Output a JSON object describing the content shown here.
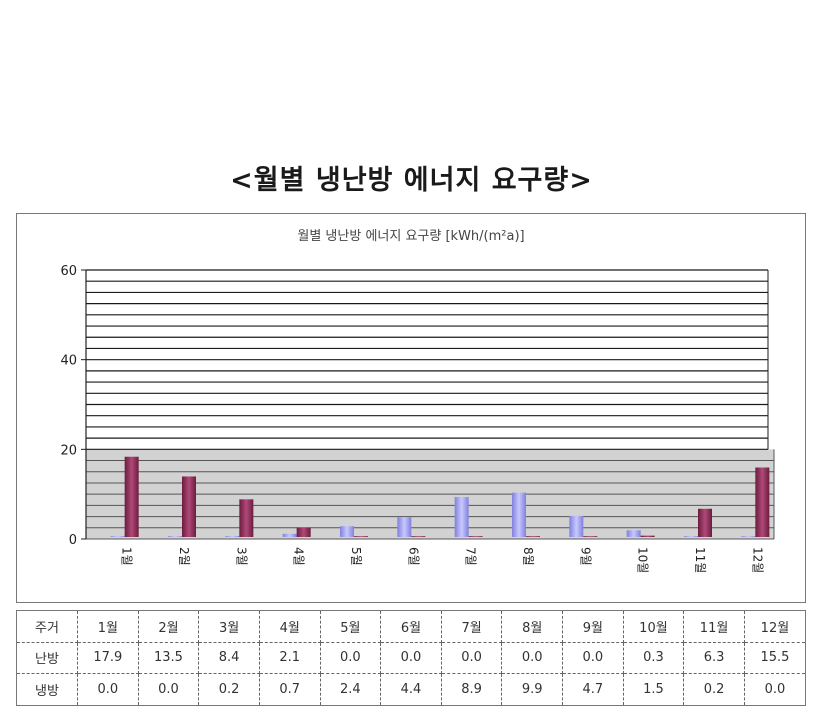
{
  "page_title": "<월별 냉난방 에너지 요구량>",
  "chart_data": {
    "type": "bar",
    "title": "월별 냉난방 에너지 요구량 [kWh/(m²a)]",
    "categories": [
      "1월",
      "2월",
      "3월",
      "4월",
      "5월",
      "6월",
      "7월",
      "8월",
      "9월",
      "10월",
      "11월",
      "12월"
    ],
    "series": [
      {
        "name": "냉방",
        "values": [
          0.0,
          0.0,
          0.2,
          0.7,
          2.4,
          4.4,
          8.9,
          9.9,
          4.7,
          1.5,
          0.2,
          0.0
        ],
        "color": "#9999ee"
      },
      {
        "name": "난방",
        "values": [
          17.9,
          13.5,
          8.4,
          2.1,
          0.0,
          0.0,
          0.0,
          0.0,
          0.0,
          0.3,
          6.3,
          15.5
        ],
        "color": "#8b2a52"
      }
    ],
    "yticks": [
      0,
      20,
      40,
      60
    ],
    "ylim": [
      0,
      60
    ],
    "grid": true,
    "legend": "none",
    "colors": {
      "cooling": "#9999ee",
      "heating": "#8b2a52",
      "floor_gray": "#c8c8c8",
      "gridline": "#1a1a1a"
    }
  },
  "table": {
    "header": [
      "주거",
      "1월",
      "2월",
      "3월",
      "4월",
      "5월",
      "6월",
      "7월",
      "8월",
      "9월",
      "10월",
      "11월",
      "12월"
    ],
    "heating_label": "난방",
    "heating": [
      "17.9",
      "13.5",
      "8.4",
      "2.1",
      "0.0",
      "0.0",
      "0.0",
      "0.0",
      "0.0",
      "0.3",
      "6.3",
      "15.5"
    ],
    "cooling_label": "냉방",
    "cooling": [
      "0.0",
      "0.0",
      "0.2",
      "0.7",
      "2.4",
      "4.4",
      "8.9",
      "9.9",
      "4.7",
      "1.5",
      "0.2",
      "0.0"
    ]
  }
}
